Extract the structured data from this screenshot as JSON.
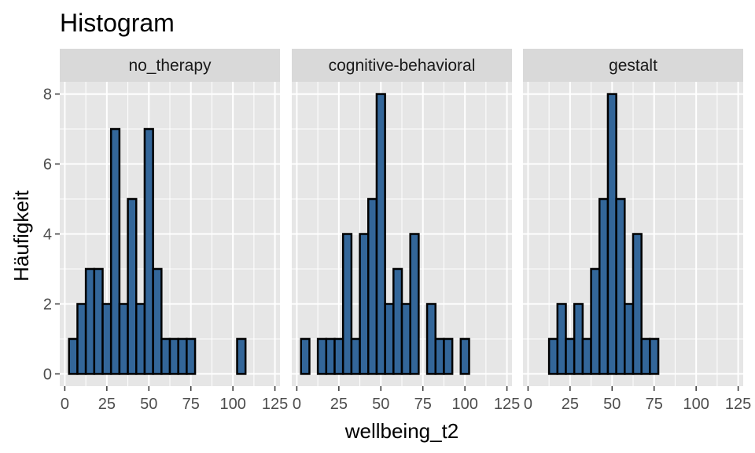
{
  "chart_data": {
    "type": "bar",
    "title": "Histogram",
    "xlabel": "wellbeing_t2",
    "ylabel": "Häufigkeit",
    "bin_width": 5,
    "x_ticks": [
      0,
      25,
      50,
      75,
      100,
      125
    ],
    "x_tick_labels": [
      "0",
      "25",
      "50",
      "75",
      "100",
      "125"
    ],
    "y_ticks": [
      0,
      2,
      4,
      6,
      8
    ],
    "y_tick_labels": [
      "0",
      "2",
      "4",
      "6",
      "8"
    ],
    "xlim": [
      -3,
      128
    ],
    "ylim": [
      -0.35,
      8.35
    ],
    "bin_centers": [
      5,
      10,
      15,
      20,
      25,
      30,
      35,
      40,
      45,
      50,
      55,
      60,
      65,
      70,
      75,
      80,
      85,
      90,
      95,
      100,
      105,
      110,
      115,
      120,
      125
    ],
    "panels": [
      {
        "name": "no_therapy",
        "counts": [
          1,
          2,
          3,
          3,
          2,
          7,
          2,
          5,
          2,
          7,
          3,
          1,
          1,
          1,
          1,
          0,
          0,
          0,
          0,
          0,
          1,
          0,
          0,
          0,
          0
        ]
      },
      {
        "name": "cognitive-behavioral",
        "counts": [
          1,
          0,
          1,
          1,
          1,
          4,
          1,
          4,
          5,
          8,
          2,
          3,
          2,
          4,
          0,
          2,
          1,
          1,
          0,
          1,
          0,
          0,
          0,
          0,
          0
        ]
      },
      {
        "name": "gestalt",
        "counts": [
          0,
          0,
          1,
          2,
          1,
          2,
          1,
          3,
          5,
          8,
          5,
          2,
          4,
          1,
          1,
          0,
          0,
          0,
          0,
          0,
          0,
          0,
          0,
          0,
          0
        ]
      }
    ],
    "colors": {
      "fill": "#336699",
      "outline": "#000000",
      "panel_bg": "#e6e6e6",
      "strip_bg": "#d9d9d9",
      "grid": "#ffffff"
    },
    "grid": true,
    "legend": "none"
  }
}
